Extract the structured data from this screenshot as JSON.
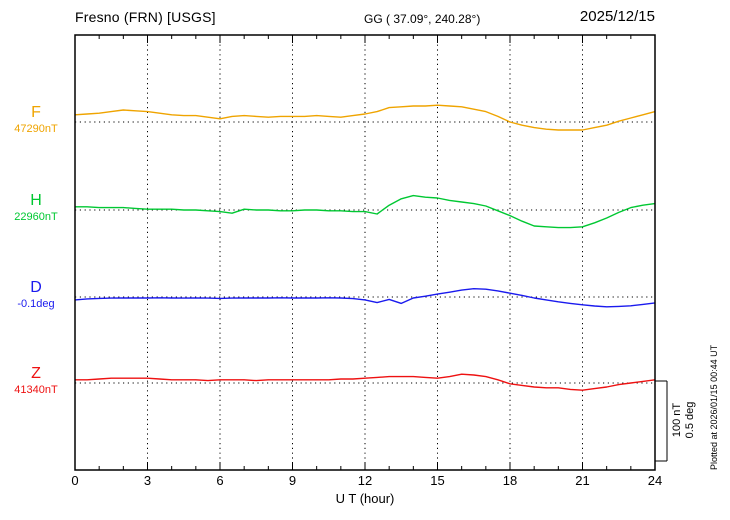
{
  "header": {
    "station": "Fresno (FRN)  [USGS]",
    "coords": "GG ( 37.09°, 240.28°)",
    "date": "2025/12/15"
  },
  "axis": {
    "x_label": "U T (hour)",
    "x_ticks": [
      "0",
      "3",
      "6",
      "9",
      "12",
      "15",
      "18",
      "21",
      "24"
    ]
  },
  "scale_bar": {
    "label_nt": "100 nT",
    "label_deg": "0.5 deg"
  },
  "footer_note": "Plotted at 2026/01/15 00:44 UT",
  "chart_data": {
    "type": "line",
    "title": "Fresno (FRN) [USGS] magnetogram 2025/12/15",
    "xlabel": "U T (hour)",
    "x_range_hours": [
      0,
      24
    ],
    "x_step_hours": 0.5,
    "x_tick_labels": [
      "0",
      "3",
      "6",
      "9",
      "12",
      "15",
      "18",
      "21",
      "24"
    ],
    "grid": "dotted vertical every 3 h, dotted horizontal at each baseline",
    "scale": {
      "nT_per_bar": 100,
      "deg_per_bar": 0.5
    },
    "series": [
      {
        "name": "F",
        "unit": "nT",
        "baseline": 47290,
        "baseline_label": "47290nT",
        "color": "#efa400",
        "values": [
          47299,
          47300,
          47301,
          47303,
          47305,
          47304,
          47303,
          47301,
          47299,
          47298,
          47298,
          47296,
          47294,
          47297,
          47298,
          47297,
          47296,
          47297,
          47297,
          47297,
          47298,
          47297,
          47296,
          47298,
          47300,
          47303,
          47308,
          47309,
          47310,
          47310,
          47311,
          47310,
          47309,
          47306,
          47303,
          47297,
          47290,
          47286,
          47283,
          47281,
          47280,
          47280,
          47280,
          47283,
          47286,
          47291,
          47295,
          47299,
          47303
        ]
      },
      {
        "name": "H",
        "unit": "nT",
        "baseline": 22960,
        "baseline_label": "22960nT",
        "color": "#00c832",
        "values": [
          22964,
          22964,
          22963,
          22963,
          22963,
          22962,
          22961,
          22961,
          22961,
          22960,
          22960,
          22959,
          22958,
          22956,
          22961,
          22960,
          22960,
          22959,
          22959,
          22960,
          22960,
          22959,
          22959,
          22958,
          22958,
          22955,
          22966,
          22974,
          22978,
          22976,
          22975,
          22972,
          22970,
          22968,
          22965,
          22959,
          22953,
          22946,
          22940,
          22939,
          22938,
          22938,
          22939,
          22944,
          22950,
          22957,
          22963,
          22966,
          22968
        ]
      },
      {
        "name": "D",
        "unit": "deg",
        "baseline": -0.1,
        "baseline_label": "-0.1deg",
        "color": "#1a1aee",
        "values": [
          -0.118,
          -0.112,
          -0.109,
          -0.107,
          -0.106,
          -0.106,
          -0.106,
          -0.105,
          -0.106,
          -0.107,
          -0.106,
          -0.107,
          -0.109,
          -0.107,
          -0.106,
          -0.106,
          -0.106,
          -0.105,
          -0.106,
          -0.106,
          -0.106,
          -0.105,
          -0.106,
          -0.11,
          -0.118,
          -0.135,
          -0.115,
          -0.14,
          -0.106,
          -0.095,
          -0.082,
          -0.07,
          -0.057,
          -0.048,
          -0.051,
          -0.062,
          -0.076,
          -0.09,
          -0.106,
          -0.118,
          -0.13,
          -0.14,
          -0.149,
          -0.156,
          -0.161,
          -0.159,
          -0.155,
          -0.146,
          -0.137
        ]
      },
      {
        "name": "Z",
        "unit": "nT",
        "baseline": 41340,
        "baseline_label": "41340nT",
        "color": "#ee1111",
        "values": [
          41344,
          41344,
          41345,
          41346,
          41346,
          41346,
          41346,
          41345,
          41344,
          41344,
          41344,
          41343,
          41344,
          41344,
          41344,
          41343,
          41344,
          41344,
          41344,
          41344,
          41344,
          41344,
          41345,
          41345,
          41346,
          41347,
          41348,
          41348,
          41348,
          41347,
          41346,
          41348,
          41351,
          41350,
          41348,
          41344,
          41339,
          41337,
          41335,
          41334,
          41334,
          41332,
          41331,
          41333,
          41335,
          41338,
          41340,
          41342,
          41344
        ]
      }
    ]
  }
}
